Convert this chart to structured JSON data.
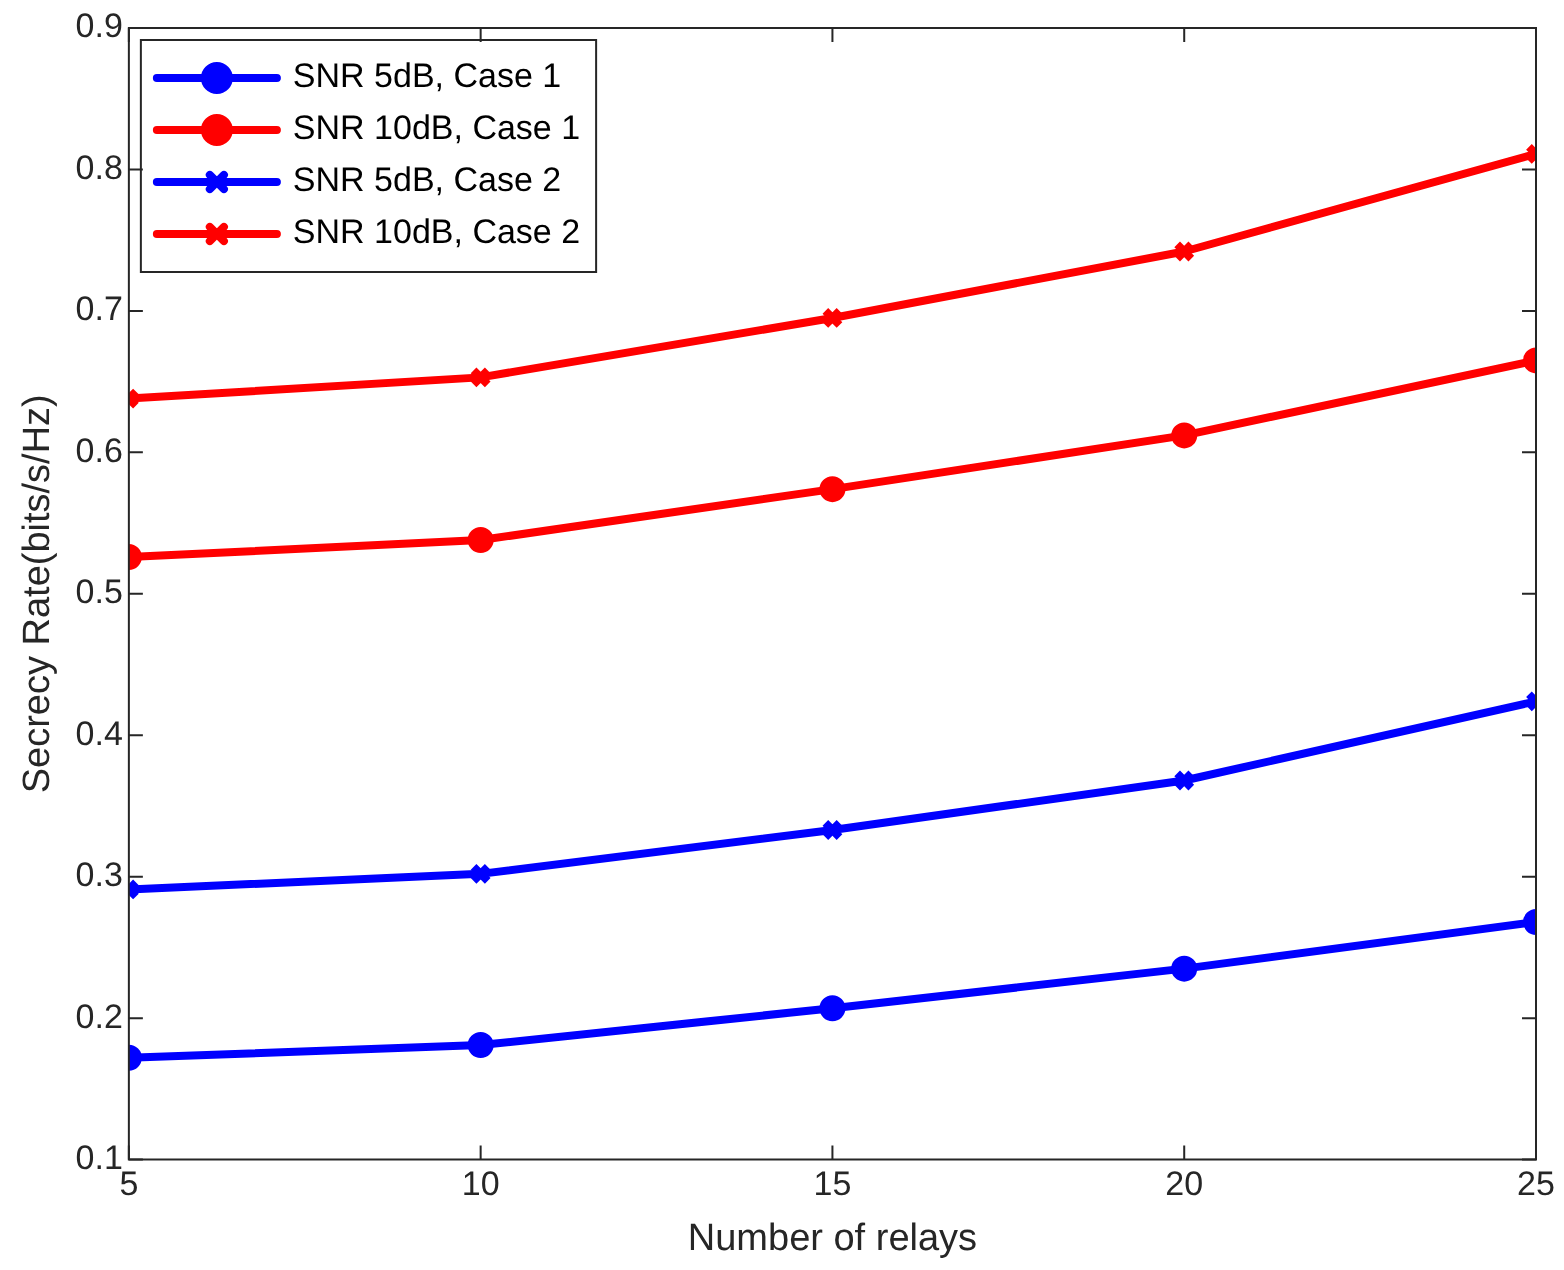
{
  "chart_data": {
    "type": "line",
    "xlabel": "Number of relays",
    "ylabel": "Secrecy Rate(bits/s/Hz)",
    "x": [
      5,
      10,
      15,
      20,
      25
    ],
    "series": [
      {
        "name": "SNR 5dB, Case 1",
        "color": "#0000ff",
        "marker": "circle",
        "values": [
          0.172,
          0.181,
          0.207,
          0.235,
          0.268
        ]
      },
      {
        "name": "SNR 10dB, Case 1",
        "color": "#ff0000",
        "marker": "circle",
        "values": [
          0.526,
          0.538,
          0.574,
          0.612,
          0.665
        ]
      },
      {
        "name": "SNR 5dB, Case 2",
        "color": "#0000ff",
        "marker": "cross",
        "values": [
          0.291,
          0.302,
          0.333,
          0.368,
          0.424
        ]
      },
      {
        "name": "SNR 10dB, Case 2",
        "color": "#ff0000",
        "marker": "cross",
        "values": [
          0.638,
          0.653,
          0.695,
          0.742,
          0.811
        ]
      }
    ],
    "xlim": [
      5,
      25
    ],
    "xticks": [
      5,
      10,
      15,
      20,
      25
    ],
    "ylim": [
      0.1,
      0.9
    ],
    "yticks": [
      0.1,
      0.2,
      0.3,
      0.4,
      0.5,
      0.6,
      0.7,
      0.8,
      0.9
    ],
    "legend": "top left",
    "grid": false,
    "line_style": "solid"
  }
}
